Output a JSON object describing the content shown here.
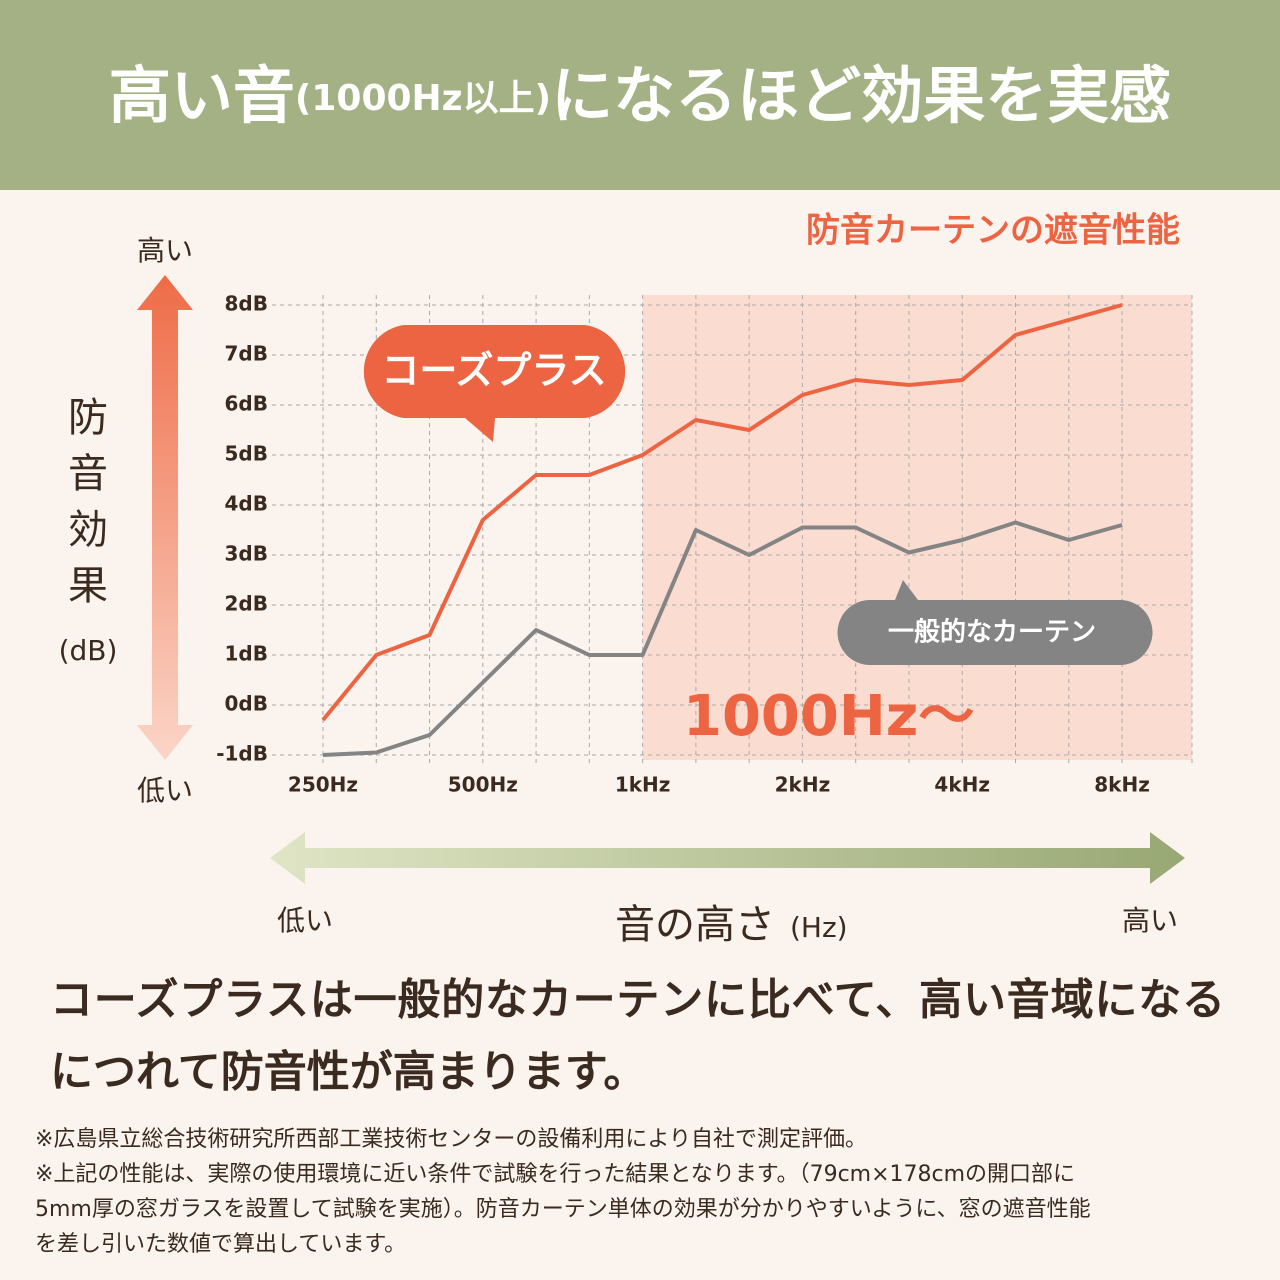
{
  "header": {
    "title": [
      "高い音",
      "(1000Hz以上)",
      "になるほど効果を実感"
    ]
  },
  "chart_data": {
    "type": "line",
    "title": "防音カーテンの遮音性能",
    "y_label": [
      "防",
      "音",
      "効",
      "果",
      "(dB)"
    ],
    "y_high": "高い",
    "y_low": "低い",
    "x_label": [
      "音の高さ",
      "(Hz)"
    ],
    "x_low": "低い",
    "x_high": "高い",
    "categories": [
      "250Hz",
      null,
      null,
      "500Hz",
      null,
      null,
      "1kHz",
      null,
      null,
      "2kHz",
      null,
      null,
      "4kHz",
      null,
      null,
      "8kHz"
    ],
    "series": [
      {
        "name": "コーズプラス",
        "color": "#ec6442",
        "values": [
          -0.3,
          1.0,
          1.4,
          3.7,
          4.6,
          4.6,
          5.0,
          5.7,
          5.5,
          6.2,
          6.5,
          6.4,
          6.5,
          7.4,
          7.7,
          8.0
        ]
      },
      {
        "name": "一般的なカーテン",
        "color": "#848484",
        "values": [
          -1.0,
          -0.95,
          -0.6,
          0.45,
          1.5,
          1.0,
          1.0,
          3.5,
          3.0,
          3.55,
          3.55,
          3.05,
          3.3,
          3.65,
          3.3,
          3.6
        ]
      }
    ],
    "ylim": [
      -1.1,
      8.2
    ],
    "yticks": [
      {
        "value": -1,
        "label": "-1dB"
      },
      {
        "value": 0,
        "label": "0dB"
      },
      {
        "value": 1,
        "label": "1dB"
      },
      {
        "value": 2,
        "label": "2dB"
      },
      {
        "value": 3,
        "label": "3dB"
      },
      {
        "value": 4,
        "label": "4dB"
      },
      {
        "value": 5,
        "label": "5dB"
      },
      {
        "value": 6,
        "label": "6dB"
      },
      {
        "value": 7,
        "label": "7dB"
      },
      {
        "value": 8,
        "label": "8dB"
      }
    ],
    "grid": true,
    "shaded_from": "1kHz",
    "shaded_label": "1000Hz〜"
  },
  "body": {
    "lines": [
      "コーズプラスは一般的なカーテンに比べて、高い音域になる",
      "につれて防音性が高まります。"
    ]
  },
  "notes": [
    "※広島県立総合技術研究所西部工業技術センターの設備利用により自社で測定評価。",
    "※上記の性能は、実際の使用環境に近い条件で試験を行った結果となります。（79cm×178cmの開口部に",
    "5mm厚の窓ガラスを設置して試験を実施）。防音カーテン単体の効果が分かりやすいように、窓の遮音性能",
    "を差し引いた数値で算出しています。"
  ]
}
